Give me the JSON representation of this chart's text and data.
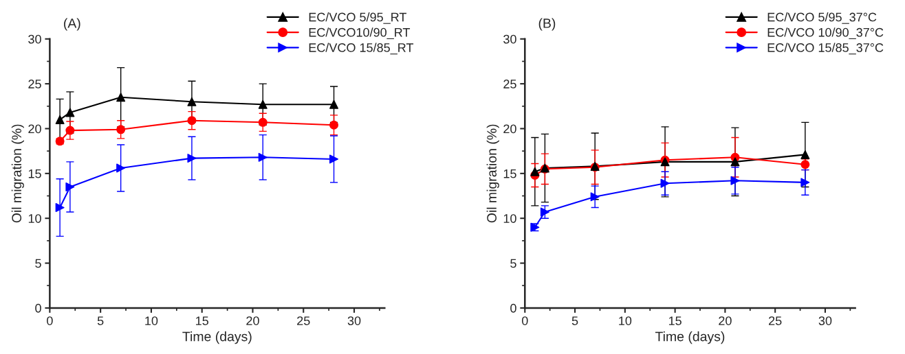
{
  "chart_data": [
    {
      "type": "line",
      "title": "(A)",
      "xlabel": "Time (days)",
      "ylabel": "Oil migration (%)",
      "xlim": [
        0,
        33
      ],
      "xticks": [
        0,
        5,
        10,
        15,
        20,
        25,
        30
      ],
      "ylim": [
        0,
        30
      ],
      "yticks": [
        0,
        5,
        10,
        15,
        20,
        25,
        30
      ],
      "legend": "top right",
      "grid": false,
      "x": [
        1,
        2,
        7,
        14,
        21,
        28
      ],
      "series": [
        {
          "name": "EC/VCO 5/95_RT",
          "color": "#000000",
          "marker": "triangle",
          "values": [
            21.0,
            21.8,
            23.5,
            23.0,
            22.7,
            22.7
          ],
          "errors": [
            2.3,
            2.3,
            3.3,
            2.3,
            2.3,
            2.0
          ]
        },
        {
          "name": "EC/VCO10/90_RT",
          "color": "#ff0000",
          "marker": "circle",
          "values": [
            18.6,
            19.8,
            19.9,
            20.9,
            20.7,
            20.4
          ],
          "errors": [
            0.3,
            1.0,
            1.0,
            1.0,
            1.0,
            1.1
          ]
        },
        {
          "name": "EC/VCO 15/85_RT",
          "color": "#0000ff",
          "marker": "triangle_right",
          "values": [
            11.2,
            13.5,
            15.6,
            16.7,
            16.8,
            16.6
          ],
          "errors": [
            3.2,
            2.8,
            2.6,
            2.4,
            2.5,
            2.6
          ]
        }
      ]
    },
    {
      "type": "line",
      "title": "(B)",
      "xlabel": "Time (days)",
      "ylabel": "Oil migration (%)",
      "xlim": [
        0,
        33
      ],
      "xticks": [
        0,
        5,
        10,
        15,
        20,
        25,
        30
      ],
      "ylim": [
        0,
        30
      ],
      "yticks": [
        0,
        5,
        10,
        15,
        20,
        25,
        30
      ],
      "legend": "top right",
      "grid": false,
      "x": [
        1,
        2,
        7,
        14,
        21,
        28
      ],
      "series": [
        {
          "name": "EC/VCO 5/95_37°C",
          "color": "#000000",
          "marker": "triangle",
          "values": [
            15.2,
            15.6,
            15.8,
            16.3,
            16.3,
            17.1
          ],
          "errors": [
            3.8,
            3.8,
            3.7,
            3.9,
            3.8,
            3.6
          ]
        },
        {
          "name": "EC/VCO 10/90_37°C",
          "color": "#ff0000",
          "marker": "circle",
          "values": [
            14.8,
            15.5,
            15.7,
            16.5,
            16.8,
            16.0
          ],
          "errors": [
            1.3,
            1.7,
            1.9,
            1.9,
            2.2,
            0.6
          ]
        },
        {
          "name": "EC/VCO 15/85_37°C",
          "color": "#0000ff",
          "marker": "triangle_right",
          "values": [
            9.0,
            10.7,
            12.4,
            13.9,
            14.2,
            14.0
          ],
          "errors": [
            0.4,
            0.7,
            1.2,
            1.3,
            1.5,
            1.4
          ]
        }
      ]
    }
  ]
}
